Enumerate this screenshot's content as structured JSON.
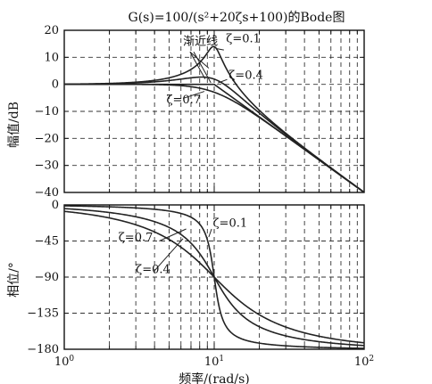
{
  "chart_data": {
    "type": "line",
    "title": "G(s)=100/(s²+20ζs+100)的Bode图",
    "xlabel": "频率/(rad/s)",
    "xscale": "log",
    "xlim": [
      1,
      100
    ],
    "x_ticks": [
      {
        "value": 1,
        "label_base": "10",
        "label_exp": "0"
      },
      {
        "value": 10,
        "label_base": "10",
        "label_exp": "1"
      },
      {
        "value": 100,
        "label_base": "10",
        "label_exp": "2"
      }
    ],
    "grid": true,
    "magnitude": {
      "ylabel": "幅值/dB",
      "ylim": [
        -40,
        20
      ],
      "yticks": [
        {
          "value": 20,
          "label": "20"
        },
        {
          "value": 10,
          "label": "10"
        },
        {
          "value": 0,
          "label": "0"
        },
        {
          "value": -10,
          "label": "−10"
        },
        {
          "value": -20,
          "label": "−20"
        },
        {
          "value": -30,
          "label": "−30"
        },
        {
          "value": -40,
          "label": "−40"
        }
      ],
      "series": [
        {
          "name": "ζ=0.1",
          "zeta": 0.1
        },
        {
          "name": "ζ=0.4",
          "zeta": 0.4
        },
        {
          "name": "ζ=0.7",
          "zeta": 0.7
        }
      ],
      "asymptote_label": "渐近线",
      "asymptote": {
        "corner": 10,
        "low_db": 0,
        "end_x": 100,
        "end_db": -40
      },
      "annotations": [
        {
          "text": "渐近线",
          "x": 6.2,
          "y": 14.5
        },
        {
          "text": "ζ=0.1",
          "x": 12.0,
          "y": 15.5
        },
        {
          "text": "ζ=0.4",
          "x": 12.5,
          "y": 2.0
        },
        {
          "text": "ζ=0.7",
          "x": 4.8,
          "y": -7.0
        }
      ]
    },
    "phase": {
      "ylabel": "相位/°",
      "ylim": [
        -180,
        0
      ],
      "yticks": [
        {
          "value": 0,
          "label": "0"
        },
        {
          "value": -45,
          "label": "−45"
        },
        {
          "value": -90,
          "label": "−90"
        },
        {
          "value": -135,
          "label": "−135"
        },
        {
          "value": -180,
          "label": "−180"
        }
      ],
      "series": [
        {
          "name": "ζ=0.1",
          "zeta": 0.1
        },
        {
          "name": "ζ=0.4",
          "zeta": 0.4
        },
        {
          "name": "ζ=0.7",
          "zeta": 0.7
        }
      ],
      "annotations": [
        {
          "text": "ζ=0.1",
          "x": 9.8,
          "y": -27
        },
        {
          "text": "ζ=0.7",
          "x": 2.3,
          "y": -45
        },
        {
          "text": "ζ=0.4",
          "x": 3.0,
          "y": -85
        }
      ]
    }
  }
}
